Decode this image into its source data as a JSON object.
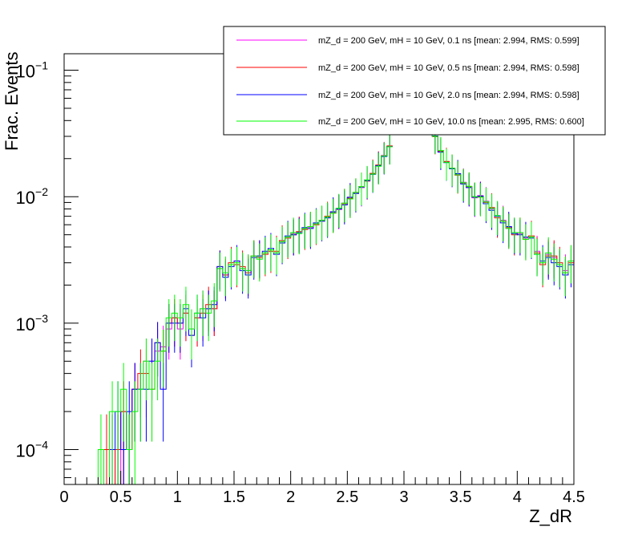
{
  "chart_data": {
    "type": "line",
    "title": "",
    "xlabel": "Z_dR",
    "ylabel": "Frac. Events",
    "xlim": [
      0,
      4.5
    ],
    "ylim": [
      5.3e-05,
      0.135
    ],
    "yscale": "log",
    "grid": false,
    "legend_position": "top-right",
    "x_ticks": [
      "0",
      "0.5",
      "1",
      "1.5",
      "2",
      "2.5",
      "3",
      "3.5",
      "4",
      "4.5"
    ],
    "y_ticks": [
      {
        "value": 0.1,
        "base": "10",
        "exp": "−1"
      },
      {
        "value": 0.01,
        "base": "10",
        "exp": "−2"
      },
      {
        "value": 0.001,
        "base": "10",
        "exp": "−3"
      },
      {
        "value": 0.0001,
        "base": "10",
        "exp": "−4"
      }
    ],
    "bin_width": 0.05,
    "series": [
      {
        "name": "mZ_d = 200 GeV, mH = 10 GeV, 0.1 ns [mean: 2.994, RMS: 0.599]",
        "color": "#ff00ff",
        "x": [
          0.3,
          0.35,
          0.4,
          0.45,
          0.5,
          0.55,
          0.6,
          0.65,
          0.7,
          0.75,
          0.8,
          0.85,
          0.9,
          0.95,
          1.0,
          1.05,
          1.1,
          1.15,
          1.2,
          1.25,
          1.3,
          1.35,
          1.4,
          1.45,
          1.5,
          1.55,
          1.6,
          1.65,
          1.7,
          1.75,
          1.8,
          1.85,
          1.9,
          1.95,
          2.0,
          2.05,
          2.1,
          2.15,
          2.2,
          2.25,
          2.3,
          2.35,
          2.4,
          2.45,
          2.5,
          2.55,
          2.6,
          2.65,
          2.7,
          2.75,
          2.8,
          2.85,
          3.25,
          3.3,
          3.35,
          3.4,
          3.45,
          3.5,
          3.55,
          3.6,
          3.65,
          3.7,
          3.75,
          3.8,
          3.85,
          3.9,
          3.95,
          4.0,
          4.05,
          4.1,
          4.15,
          4.2,
          4.25,
          4.3,
          4.35,
          4.4,
          4.45
        ],
        "y": [
          0,
          5e-05,
          0.0001,
          0,
          0.0002,
          0.0001,
          0.0003,
          0.0003,
          0.0005,
          0.0005,
          0.0006,
          0.00065,
          0.0009,
          0.0011,
          0.0009,
          0.0012,
          0.0009,
          0.0011,
          0.0013,
          0.0013,
          0.0013,
          0.0027,
          0.0024,
          0.0029,
          0.0031,
          0.0027,
          0.0026,
          0.0034,
          0.0034,
          0.0036,
          0.0038,
          0.0036,
          0.0044,
          0.0048,
          0.0051,
          0.0052,
          0.0056,
          0.0057,
          0.0061,
          0.0064,
          0.0068,
          0.0075,
          0.0079,
          0.0089,
          0.0098,
          0.0107,
          0.0118,
          0.0135,
          0.0152,
          0.0175,
          0.0212,
          0.025,
          0.03,
          0.023,
          0.0188,
          0.0166,
          0.015,
          0.013,
          0.0118,
          0.0098,
          0.0102,
          0.0092,
          0.008,
          0.007,
          0.0065,
          0.0056,
          0.0052,
          0.0051,
          0.0047,
          0.0048,
          0.0037,
          0.003,
          0.0035,
          0.0033,
          0.0029,
          0.0026,
          0.0031
        ]
      },
      {
        "name": "mZ_d = 200 GeV, mH = 10 GeV, 0.5 ns [mean: 2.994, RMS: 0.598]",
        "color": "#ff0000",
        "x": [
          0.3,
          0.35,
          0.4,
          0.45,
          0.5,
          0.55,
          0.6,
          0.65,
          0.7,
          0.75,
          0.8,
          0.85,
          0.9,
          0.95,
          1.0,
          1.05,
          1.1,
          1.15,
          1.2,
          1.25,
          1.3,
          1.35,
          1.4,
          1.45,
          1.5,
          1.55,
          1.6,
          1.65,
          1.7,
          1.75,
          1.8,
          1.85,
          1.9,
          1.95,
          2.0,
          2.05,
          2.1,
          2.15,
          2.2,
          2.25,
          2.3,
          2.35,
          2.4,
          2.45,
          2.5,
          2.55,
          2.6,
          2.65,
          2.7,
          2.75,
          2.8,
          2.85,
          3.25,
          3.3,
          3.35,
          3.4,
          3.45,
          3.5,
          3.55,
          3.6,
          3.65,
          3.7,
          3.75,
          3.8,
          3.85,
          3.9,
          3.95,
          4.0,
          4.05,
          4.1,
          4.15,
          4.2,
          4.25,
          4.3,
          4.35,
          4.4,
          4.45
        ],
        "y": [
          0,
          0.0001,
          0,
          0.0001,
          0.0002,
          0.0001,
          0.0003,
          0.0004,
          0.0004,
          0.0003,
          0.0007,
          0.0006,
          0.001,
          0.0011,
          0.001,
          0.0012,
          0.0008,
          0.0011,
          0.0012,
          0.0014,
          0.0013,
          0.0028,
          0.0024,
          0.003,
          0.0029,
          0.0028,
          0.0025,
          0.0034,
          0.0033,
          0.0035,
          0.0037,
          0.0037,
          0.0045,
          0.0047,
          0.005,
          0.0053,
          0.0055,
          0.0058,
          0.006,
          0.0065,
          0.007,
          0.0074,
          0.008,
          0.0088,
          0.0097,
          0.0108,
          0.012,
          0.0133,
          0.0153,
          0.0178,
          0.021,
          0.0252,
          0.0298,
          0.0228,
          0.019,
          0.0168,
          0.0148,
          0.0128,
          0.012,
          0.01,
          0.01,
          0.009,
          0.0082,
          0.0068,
          0.0064,
          0.0057,
          0.005,
          0.0052,
          0.0046,
          0.0049,
          0.0036,
          0.0029,
          0.0034,
          0.0034,
          0.003,
          0.0025,
          0.003
        ]
      },
      {
        "name": "mZ_d = 200 GeV, mH = 10 GeV, 2.0 ns [mean: 2.994, RMS: 0.598]",
        "color": "#0000ff",
        "x": [
          0.3,
          0.35,
          0.4,
          0.45,
          0.5,
          0.55,
          0.6,
          0.65,
          0.7,
          0.75,
          0.8,
          0.85,
          0.9,
          0.95,
          1.0,
          1.05,
          1.1,
          1.15,
          1.2,
          1.25,
          1.3,
          1.35,
          1.4,
          1.45,
          1.5,
          1.55,
          1.6,
          1.65,
          1.7,
          1.75,
          1.8,
          1.85,
          1.9,
          1.95,
          2.0,
          2.05,
          2.1,
          2.15,
          2.2,
          2.25,
          2.3,
          2.35,
          2.4,
          2.45,
          2.5,
          2.55,
          2.6,
          2.65,
          2.7,
          2.75,
          2.8,
          2.85,
          3.25,
          3.3,
          3.35,
          3.4,
          3.45,
          3.5,
          3.55,
          3.6,
          3.65,
          3.7,
          3.75,
          3.8,
          3.85,
          3.9,
          3.95,
          4.0,
          4.05,
          4.1,
          4.15,
          4.2,
          4.25,
          4.3,
          4.35,
          4.4,
          4.45
        ],
        "y": [
          0,
          0,
          0.0001,
          0.0002,
          0.0001,
          0.0002,
          0.0003,
          0.0003,
          0.0003,
          0.0005,
          0.0007,
          0.0003,
          0.001,
          0.001,
          0.001,
          0.0013,
          0.0008,
          0.0012,
          0.0011,
          0.0013,
          0.0014,
          0.0028,
          0.0023,
          0.0028,
          0.0031,
          0.0026,
          0.0024,
          0.0033,
          0.0034,
          0.0037,
          0.0039,
          0.0035,
          0.0043,
          0.0049,
          0.005,
          0.0052,
          0.0057,
          0.0056,
          0.0062,
          0.0064,
          0.0068,
          0.0076,
          0.008,
          0.0086,
          0.0099,
          0.0106,
          0.0119,
          0.0134,
          0.015,
          0.0176,
          0.0208,
          0.0249,
          0.0302,
          0.0225,
          0.0186,
          0.0166,
          0.0152,
          0.0126,
          0.0118,
          0.0099,
          0.0101,
          0.0088,
          0.0078,
          0.007,
          0.0062,
          0.0058,
          0.0051,
          0.005,
          0.0048,
          0.0047,
          0.0035,
          0.0031,
          0.0033,
          0.003,
          0.0028,
          0.0024,
          0.0029
        ]
      },
      {
        "name": "mZ_d = 200 GeV, mH = 10 GeV, 10.0 ns [mean: 2.995, RMS: 0.600]",
        "color": "#00ff00",
        "x": [
          0.3,
          0.35,
          0.4,
          0.45,
          0.5,
          0.55,
          0.6,
          0.65,
          0.7,
          0.75,
          0.8,
          0.85,
          0.9,
          0.95,
          1.0,
          1.05,
          1.1,
          1.15,
          1.2,
          1.25,
          1.3,
          1.35,
          1.4,
          1.45,
          1.5,
          1.55,
          1.6,
          1.65,
          1.7,
          1.75,
          1.8,
          1.85,
          1.9,
          1.95,
          2.0,
          2.05,
          2.1,
          2.15,
          2.2,
          2.25,
          2.3,
          2.35,
          2.4,
          2.45,
          2.5,
          2.55,
          2.6,
          2.65,
          2.7,
          2.75,
          2.8,
          2.85,
          3.25,
          3.3,
          3.35,
          3.4,
          3.45,
          3.5,
          3.55,
          3.6,
          3.65,
          3.7,
          3.75,
          3.8,
          3.85,
          3.9,
          3.95,
          4.0,
          4.05,
          4.1,
          4.15,
          4.2,
          4.25,
          4.3,
          4.35,
          4.4,
          4.45
        ],
        "y": [
          0.0001,
          0,
          0.0002,
          0.0002,
          0.0003,
          0.0001,
          0.0002,
          0.0003,
          0.0005,
          0.0003,
          0.0005,
          0.0006,
          0.0011,
          0.0012,
          0.0011,
          0.0014,
          0.0009,
          0.0012,
          0.0013,
          0.0012,
          0.0015,
          0.0027,
          0.0025,
          0.0029,
          0.003,
          0.0027,
          0.0026,
          0.0034,
          0.0032,
          0.0036,
          0.0038,
          0.0036,
          0.0044,
          0.0048,
          0.0052,
          0.0051,
          0.0056,
          0.0058,
          0.0061,
          0.0065,
          0.0069,
          0.0074,
          0.0081,
          0.0089,
          0.0096,
          0.0108,
          0.012,
          0.0136,
          0.0151,
          0.0174,
          0.021,
          0.0248,
          0.03,
          0.0232,
          0.0187,
          0.0168,
          0.0149,
          0.0129,
          0.0121,
          0.01,
          0.0099,
          0.0091,
          0.0081,
          0.0071,
          0.0064,
          0.0056,
          0.0052,
          0.0052,
          0.0046,
          0.0048,
          0.0035,
          0.003,
          0.0036,
          0.0032,
          0.0029,
          0.0025,
          0.0031
        ]
      }
    ]
  }
}
